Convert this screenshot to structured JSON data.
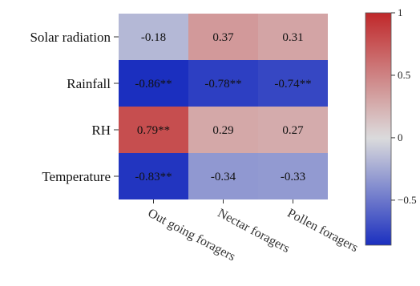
{
  "chart_data": {
    "type": "heatmap",
    "rows": [
      "Solar radiation",
      "Rainfall",
      "RH",
      "Temperature"
    ],
    "columns": [
      "Out going foragers",
      "Nectar foragers",
      "Pollen foragers"
    ],
    "values": [
      [
        -0.18,
        0.37,
        0.31
      ],
      [
        -0.86,
        -0.78,
        -0.74
      ],
      [
        0.79,
        0.29,
        0.27
      ],
      [
        -0.83,
        -0.34,
        -0.33
      ]
    ],
    "cell_labels": [
      [
        "-0.18",
        "0.37",
        "0.31"
      ],
      [
        "-0.86**",
        "-0.78**",
        "-0.74**"
      ],
      [
        "0.79**",
        "0.29",
        "0.27"
      ],
      [
        "-0.83**",
        "-0.34",
        "-0.33"
      ]
    ],
    "colorbar": {
      "range": [
        -0.86,
        1
      ],
      "ticks": [
        1,
        0.5,
        0,
        -0.5
      ],
      "tick_labels": [
        "1",
        "0.5",
        "0",
        "−0.5"
      ]
    },
    "colormap": {
      "low": "#1b2fbf",
      "mid": "#dcdcdc",
      "high": "#c0282a"
    }
  }
}
